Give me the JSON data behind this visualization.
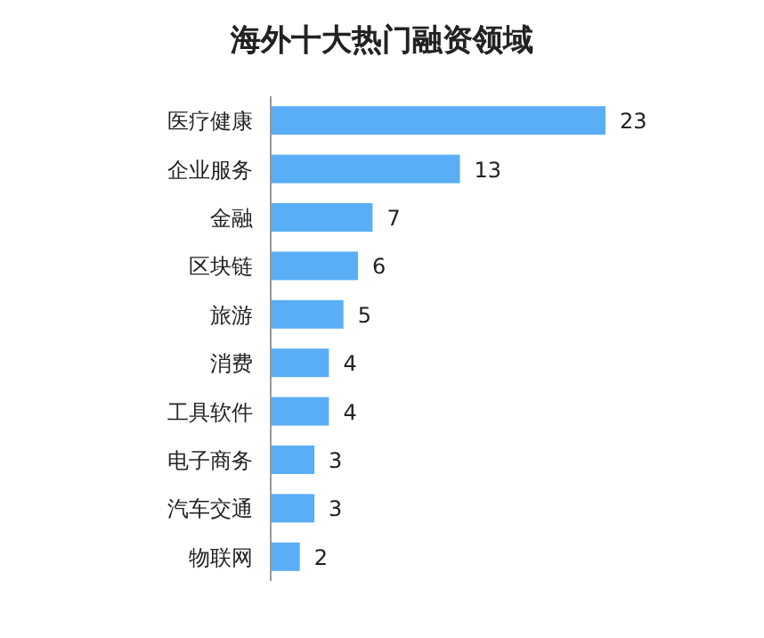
{
  "chart_data": {
    "type": "bar",
    "orientation": "horizontal",
    "title": "海外十大热门融资领域",
    "categories": [
      "医疗健康",
      "企业服务",
      "金融",
      "区块链",
      "旅游",
      "消费",
      "工具软件",
      "电子商务",
      "汽车交通",
      "物联网"
    ],
    "values": [
      23,
      13,
      7,
      6,
      5,
      4,
      4,
      3,
      3,
      2
    ],
    "color": "#5aaef5",
    "data_labels": true
  }
}
